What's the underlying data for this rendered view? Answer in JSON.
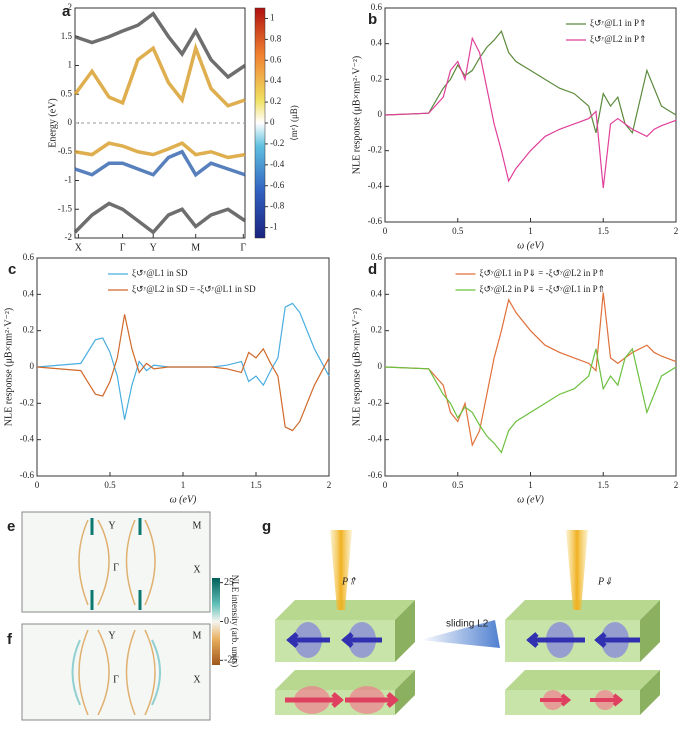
{
  "chart_data": [
    {
      "type": "line",
      "label": "a",
      "y_label": "Energy (eV)",
      "x": [
        0,
        0.1,
        0.2,
        0.28,
        0.37,
        0.46,
        0.55,
        0.63,
        0.71,
        0.8,
        0.9,
        1
      ],
      "xlim": [
        0,
        1
      ],
      "xticks": [
        {
          "value": 0.02,
          "label": "X"
        },
        {
          "value": 0.28,
          "label": "Γ"
        },
        {
          "value": 0.46,
          "label": "Y"
        },
        {
          "value": 0.71,
          "label": "M"
        },
        {
          "value": 0.99,
          "label": "Γ"
        }
      ],
      "ylim": [
        -2,
        2
      ],
      "yticks": [
        -2,
        -1.5,
        -1,
        -0.5,
        0,
        0.5,
        1,
        1.5,
        2
      ],
      "dashed_zero_line": true,
      "series": [
        {
          "color": "#555555",
          "values": [
            1.5,
            1.4,
            1.5,
            1.6,
            1.7,
            1.9,
            1.5,
            1.2,
            1.6,
            1.1,
            0.8,
            1.0
          ]
        },
        {
          "color": "#d9a030",
          "values": [
            0.5,
            0.9,
            0.45,
            0.35,
            1.1,
            1.3,
            0.7,
            0.4,
            1.3,
            0.6,
            0.3,
            0.4
          ]
        },
        {
          "color": "#d9a030",
          "values": [
            -0.5,
            -0.55,
            -0.35,
            -0.4,
            -0.5,
            -0.55,
            -0.45,
            -0.35,
            -0.55,
            -0.5,
            -0.6,
            -0.55
          ]
        },
        {
          "color": "#3a6ab0",
          "values": [
            -0.8,
            -0.9,
            -0.7,
            -0.7,
            -0.8,
            -0.9,
            -0.6,
            -0.5,
            -0.9,
            -0.7,
            -0.8,
            -0.9
          ]
        },
        {
          "color": "#555555",
          "values": [
            -1.9,
            -1.6,
            -1.4,
            -1.5,
            -1.7,
            -1.9,
            -1.6,
            -1.5,
            -1.8,
            -1.6,
            -1.5,
            -1.7
          ]
        }
      ],
      "colorbar": {
        "label": "⟨mᶻ⟩ (μB)",
        "lim": [
          -1.1,
          1.1
        ],
        "ticks": [
          1,
          0.8,
          0.6,
          0.4,
          0.2,
          0,
          -0.2,
          -0.4,
          -0.6,
          -0.8,
          -1
        ]
      }
    },
    {
      "type": "line",
      "label": "b",
      "x_label": "ω (eV)",
      "y_label": "NLE response (μB×nm²·V⁻²)",
      "x": [
        0,
        0.3,
        0.4,
        0.45,
        0.5,
        0.55,
        0.6,
        0.65,
        0.7,
        0.75,
        0.8,
        0.85,
        0.9,
        1.0,
        1.1,
        1.2,
        1.3,
        1.4,
        1.45,
        1.5,
        1.55,
        1.6,
        1.65,
        1.7,
        1.8,
        1.85,
        1.9,
        2.0
      ],
      "xlim": [
        0,
        2
      ],
      "xticks": [
        0,
        0.5,
        1,
        1.5,
        2
      ],
      "ylim": [
        -0.6,
        0.6
      ],
      "yticks": [
        -0.6,
        -0.4,
        -0.2,
        0,
        0.2,
        0.4,
        0.6
      ],
      "legend": "upper right",
      "series": [
        {
          "name": "ξ↺ʸ@L1 in P⇑",
          "color": "#5b8a3c",
          "values": [
            0,
            0.01,
            0.15,
            0.2,
            0.28,
            0.22,
            0.25,
            0.32,
            0.38,
            0.42,
            0.47,
            0.35,
            0.3,
            0.25,
            0.2,
            0.15,
            0.12,
            0.05,
            -0.1,
            0.12,
            0.05,
            0.1,
            -0.05,
            -0.1,
            0.25,
            0.15,
            0.05,
            0
          ]
        },
        {
          "name": "ξ↺ʸ@L2 in P⇑",
          "color": "#e0409a",
          "values": [
            0,
            0.01,
            0.1,
            0.25,
            0.3,
            0.2,
            0.43,
            0.35,
            0.15,
            -0.05,
            -0.2,
            -0.37,
            -0.3,
            -0.2,
            -0.12,
            -0.08,
            -0.05,
            -0.02,
            0.02,
            -0.41,
            -0.05,
            -0.02,
            -0.05,
            -0.08,
            -0.12,
            -0.08,
            -0.06,
            -0.03
          ]
        }
      ]
    },
    {
      "type": "line",
      "label": "c",
      "x_label": "ω (eV)",
      "y_label": "NLE response (μB×nm²·V⁻²)",
      "x": [
        0,
        0.3,
        0.4,
        0.45,
        0.5,
        0.55,
        0.6,
        0.65,
        0.7,
        0.75,
        0.8,
        0.9,
        1.0,
        1.2,
        1.3,
        1.4,
        1.45,
        1.5,
        1.55,
        1.6,
        1.65,
        1.7,
        1.75,
        1.8,
        1.9,
        2.0
      ],
      "xlim": [
        0,
        2
      ],
      "xticks": [
        0,
        0.5,
        1,
        1.5,
        2
      ],
      "ylim": [
        -0.6,
        0.6
      ],
      "yticks": [
        -0.6,
        -0.4,
        -0.2,
        0,
        0.2,
        0.4,
        0.6
      ],
      "legend": "upper center",
      "series": [
        {
          "name": "ξ↺ʸ@L1 in SD",
          "color": "#4aaee0",
          "values": [
            0,
            0.02,
            0.15,
            0.16,
            0.08,
            -0.05,
            -0.29,
            -0.1,
            0.03,
            -0.02,
            0.01,
            0,
            0,
            0,
            0.01,
            0.03,
            -0.08,
            -0.05,
            -0.1,
            -0.02,
            0.05,
            0.33,
            0.35,
            0.3,
            0.1,
            -0.05
          ]
        },
        {
          "name": "ξ↺ʸ@L2 in SD = -ξ↺ʸ@L1 in SD",
          "color": "#d0692a",
          "values": [
            0,
            -0.02,
            -0.15,
            -0.16,
            -0.08,
            0.05,
            0.29,
            0.1,
            -0.03,
            0.02,
            -0.01,
            0,
            0,
            0,
            -0.01,
            -0.03,
            0.08,
            0.05,
            0.1,
            0.02,
            -0.05,
            -0.33,
            -0.35,
            -0.3,
            -0.1,
            0.05
          ]
        }
      ]
    },
    {
      "type": "line",
      "label": "d",
      "x_label": "ω (eV)",
      "y_label": "NLE response (μB×nm²·V⁻²)",
      "x": [
        0,
        0.3,
        0.4,
        0.45,
        0.5,
        0.55,
        0.6,
        0.65,
        0.7,
        0.75,
        0.8,
        0.85,
        0.9,
        1.0,
        1.1,
        1.2,
        1.3,
        1.4,
        1.45,
        1.5,
        1.55,
        1.6,
        1.65,
        1.7,
        1.8,
        1.85,
        1.9,
        2.0
      ],
      "xlim": [
        0,
        2
      ],
      "xticks": [
        0,
        0.5,
        1,
        1.5,
        2
      ],
      "ylim": [
        -0.6,
        0.6
      ],
      "yticks": [
        -0.6,
        -0.4,
        -0.2,
        0,
        0.2,
        0.4,
        0.6
      ],
      "legend": "upper center",
      "series": [
        {
          "name": "ξ↺ʸ@L1 in P⇓ = -ξ↺ʸ@L2 in P⇑",
          "color": "#e0703a",
          "values": [
            0,
            -0.01,
            -0.1,
            -0.25,
            -0.3,
            -0.2,
            -0.43,
            -0.35,
            -0.15,
            0.05,
            0.2,
            0.37,
            0.3,
            0.2,
            0.12,
            0.08,
            0.05,
            0.02,
            -0.02,
            0.41,
            0.05,
            0.02,
            0.05,
            0.08,
            0.12,
            0.08,
            0.06,
            0.03
          ]
        },
        {
          "name": "ξ↺ʸ@L2 in P⇓ = -ξ↺ʸ@L1 in P⇑",
          "color": "#6cc040",
          "values": [
            0,
            -0.01,
            -0.15,
            -0.2,
            -0.28,
            -0.22,
            -0.25,
            -0.32,
            -0.38,
            -0.42,
            -0.47,
            -0.35,
            -0.3,
            -0.25,
            -0.2,
            -0.15,
            -0.12,
            -0.05,
            0.1,
            -0.12,
            -0.05,
            -0.1,
            0.05,
            0.1,
            -0.25,
            -0.15,
            -0.05,
            0
          ]
        }
      ]
    }
  ],
  "heatmaps": {
    "panels": [
      {
        "label": "e",
        "points": [
          "Y",
          "M",
          "Γ",
          "X"
        ]
      },
      {
        "label": "f",
        "points": [
          "Y",
          "M",
          "Γ",
          "X"
        ]
      }
    ],
    "colorbar": {
      "label": "NLE intensity (arb. units)",
      "lim": [
        -28,
        28
      ],
      "ticks": [
        25,
        0,
        -25
      ]
    }
  },
  "diagram": {
    "label": "g",
    "left_state": "P⇑",
    "arrow_text": "sliding L2",
    "right_state": "P⇓"
  }
}
